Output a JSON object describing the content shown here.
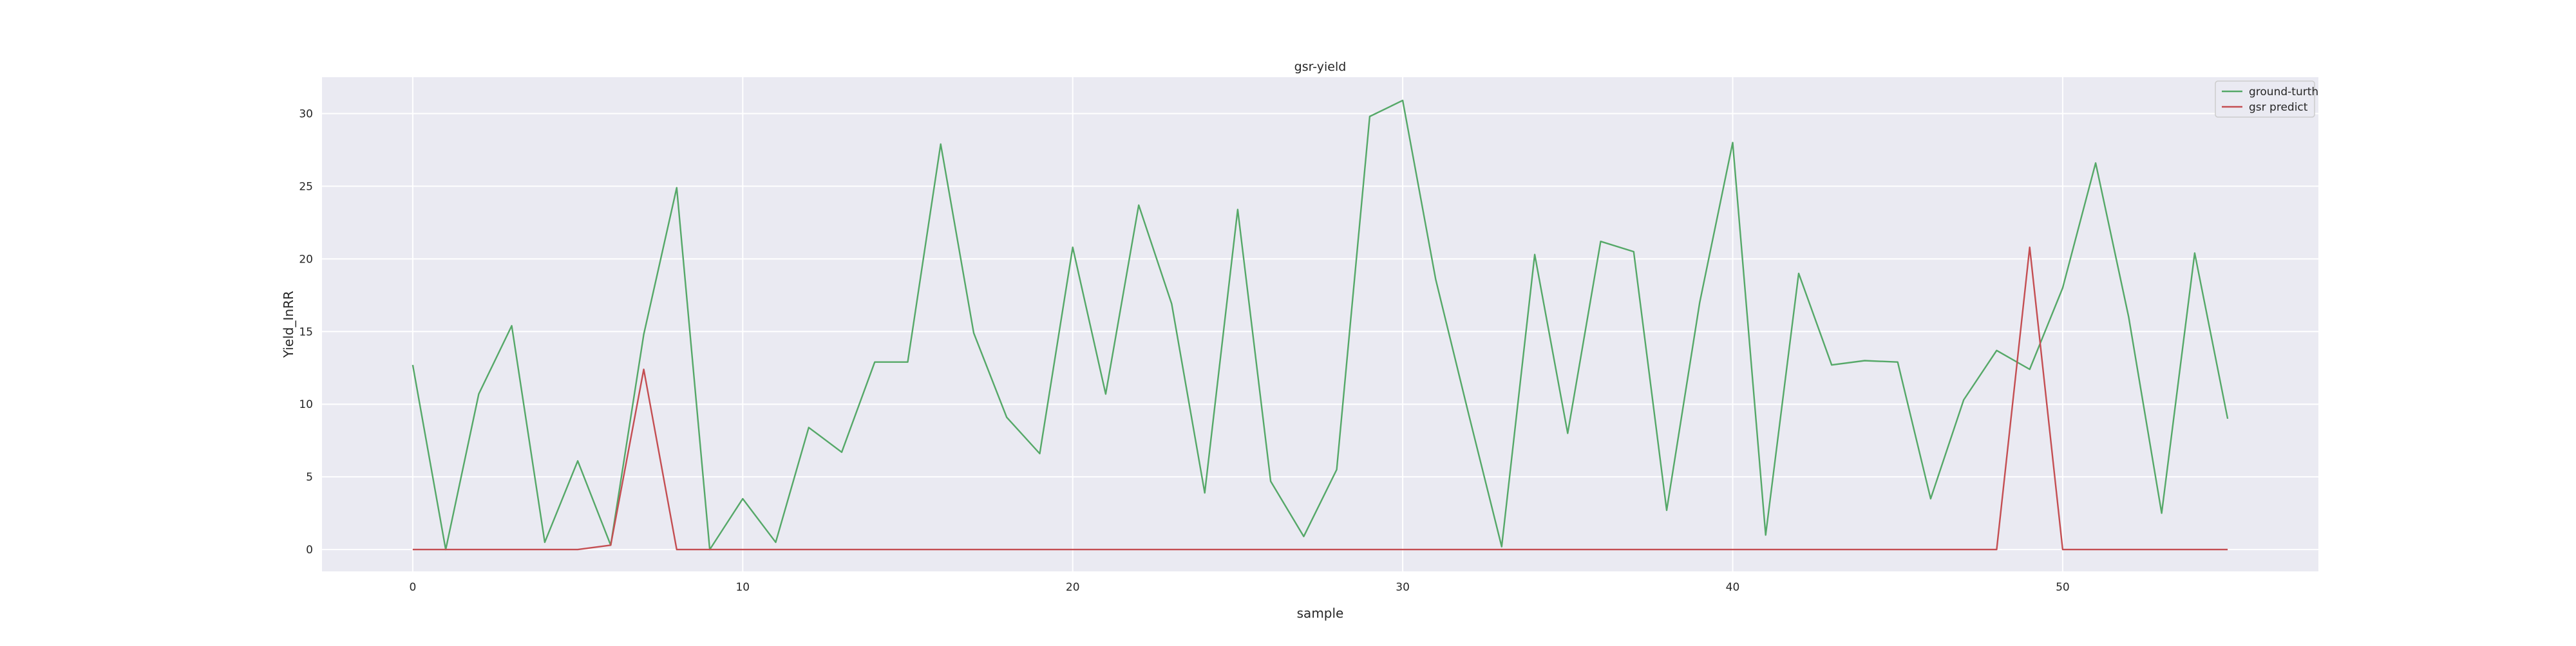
{
  "chart_data": {
    "type": "line",
    "title": "gsr-yield",
    "xlabel": "sample",
    "ylabel": "Yield_InRR",
    "xlim": [
      -2.75,
      57.75
    ],
    "ylim": [
      -1.5,
      32.5
    ],
    "xticks": [
      0,
      10,
      20,
      30,
      40,
      50
    ],
    "yticks": [
      0,
      5,
      10,
      15,
      20,
      25,
      30
    ],
    "grid": true,
    "legend_position": "top-right",
    "background_color": "#EAEAF2",
    "grid_color": "#FFFFFF",
    "x": [
      0,
      1,
      2,
      3,
      4,
      5,
      6,
      7,
      8,
      9,
      10,
      11,
      12,
      13,
      14,
      15,
      16,
      17,
      18,
      19,
      20,
      21,
      22,
      23,
      24,
      25,
      26,
      27,
      28,
      29,
      30,
      31,
      32,
      33,
      34,
      35,
      36,
      37,
      38,
      39,
      40,
      41,
      42,
      43,
      44,
      45,
      46,
      47,
      48,
      49,
      50,
      51,
      52,
      53,
      54,
      55
    ],
    "series": [
      {
        "name": "ground-turth",
        "color": "#55A868",
        "values": [
          12.7,
          0.0,
          10.7,
          15.4,
          0.5,
          6.1,
          0.3,
          14.8,
          24.9,
          0.0,
          3.5,
          0.5,
          8.4,
          6.7,
          12.9,
          12.9,
          27.9,
          14.9,
          9.1,
          6.6,
          20.8,
          10.7,
          23.7,
          16.9,
          3.9,
          23.4,
          4.7,
          0.9,
          5.5,
          29.8,
          30.9,
          18.6,
          9.3,
          0.2,
          20.3,
          8.0,
          21.2,
          20.5,
          2.7,
          17.0,
          28.0,
          1.0,
          19.0,
          12.7,
          13.0,
          12.9,
          3.5,
          10.3,
          13.7,
          12.4,
          18.0,
          26.6,
          16.0,
          2.5,
          20.4,
          9.0
        ]
      },
      {
        "name": "gsr predict",
        "color": "#C44E52",
        "values": [
          0,
          0,
          0,
          0,
          0,
          0,
          0.3,
          12.4,
          0,
          0,
          0,
          0,
          0,
          0,
          0,
          0,
          0,
          0,
          0,
          0,
          0,
          0,
          0,
          0,
          0,
          0,
          0,
          0,
          0,
          0,
          0,
          0,
          0,
          0,
          0,
          0,
          0,
          0,
          0,
          0,
          0,
          0,
          0,
          0,
          0,
          0,
          0,
          0,
          0,
          20.8,
          0,
          0,
          0,
          0,
          0,
          0
        ]
      }
    ]
  }
}
